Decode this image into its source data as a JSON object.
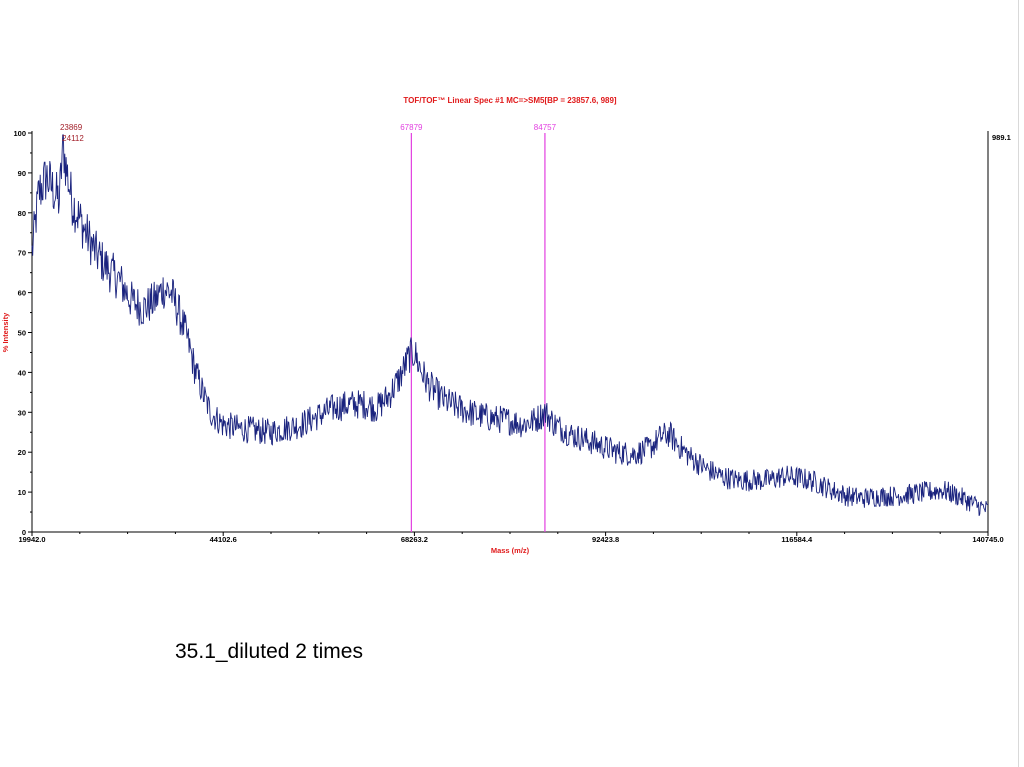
{
  "chart_data": {
    "type": "line",
    "title": "TOF/TOF™ Linear Spec #1 MC=>SM5[BP = 23857.6, 989]",
    "xlabel": "Mass (m/z)",
    "ylabel": "% Intensity",
    "xlim": [
      19942.0,
      140745.0
    ],
    "ylim": [
      0,
      100
    ],
    "x_ticks": [
      19942.0,
      44102.6,
      68263.2,
      92423.8,
      116584.4,
      140745.0
    ],
    "x_tick_labels": [
      "19942.0",
      "44102.6",
      "68263.2",
      "92423.8",
      "116584.4",
      "140745.0"
    ],
    "y_ticks": [
      0,
      10,
      20,
      30,
      40,
      50,
      60,
      70,
      80,
      90,
      100
    ],
    "y_tick_labels": [
      "0",
      "10",
      "20",
      "30",
      "40",
      "50",
      "60",
      "70",
      "80",
      "90",
      "100"
    ],
    "max_intensity_label": "989.1",
    "peak_labels": [
      {
        "mass": 23869,
        "label": "23869",
        "color": "#a3202a"
      },
      {
        "mass": 24112,
        "label": "24112",
        "color": "#a3202a"
      }
    ],
    "markers": [
      {
        "mass": 67879,
        "label": "67879",
        "color": "#e23fe0"
      },
      {
        "mass": 84757,
        "label": "84757",
        "color": "#e23fe0"
      }
    ],
    "series": [
      {
        "color": "#1a237e",
        "points": [
          [
            19942,
            70
          ],
          [
            20800,
            85
          ],
          [
            21800,
            89
          ],
          [
            22800,
            85
          ],
          [
            23400,
            83
          ],
          [
            23869,
            98
          ],
          [
            24112,
            93
          ],
          [
            25000,
            83
          ],
          [
            26500,
            76
          ],
          [
            28000,
            70
          ],
          [
            29500,
            66
          ],
          [
            31000,
            63
          ],
          [
            32500,
            58
          ],
          [
            34000,
            56
          ],
          [
            35500,
            58
          ],
          [
            36500,
            61
          ],
          [
            37500,
            60
          ],
          [
            38500,
            55
          ],
          [
            39500,
            49
          ],
          [
            40500,
            41
          ],
          [
            41500,
            35
          ],
          [
            42500,
            30
          ],
          [
            44000,
            27
          ],
          [
            46000,
            26
          ],
          [
            48000,
            25.5
          ],
          [
            50000,
            25
          ],
          [
            52000,
            26
          ],
          [
            54000,
            27
          ],
          [
            56000,
            29
          ],
          [
            58000,
            31
          ],
          [
            60000,
            32
          ],
          [
            62000,
            32
          ],
          [
            63500,
            31
          ],
          [
            65000,
            34
          ],
          [
            66500,
            39
          ],
          [
            67600,
            44
          ],
          [
            68263,
            45
          ],
          [
            69000,
            41
          ],
          [
            70000,
            37
          ],
          [
            72000,
            33
          ],
          [
            74000,
            31
          ],
          [
            76000,
            29.5
          ],
          [
            78000,
            28.5
          ],
          [
            80000,
            28
          ],
          [
            82000,
            27
          ],
          [
            83500,
            28
          ],
          [
            84757,
            30
          ],
          [
            86000,
            27
          ],
          [
            88000,
            24.5
          ],
          [
            90000,
            23
          ],
          [
            92000,
            21.5
          ],
          [
            94000,
            20
          ],
          [
            96000,
            19.5
          ],
          [
            98000,
            21
          ],
          [
            99500,
            24
          ],
          [
            100500,
            24.5
          ],
          [
            101500,
            22
          ],
          [
            103000,
            19
          ],
          [
            105000,
            16
          ],
          [
            107000,
            14
          ],
          [
            109000,
            13
          ],
          [
            111000,
            13
          ],
          [
            113000,
            13
          ],
          [
            115000,
            14
          ],
          [
            117000,
            13.5
          ],
          [
            119000,
            12.5
          ],
          [
            121000,
            10.5
          ],
          [
            123000,
            9
          ],
          [
            125000,
            8.5
          ],
          [
            127000,
            9
          ],
          [
            129000,
            9
          ],
          [
            131000,
            9.5
          ],
          [
            133000,
            10
          ],
          [
            135000,
            10.5
          ],
          [
            137000,
            9
          ],
          [
            139000,
            7
          ],
          [
            140745,
            5.5
          ]
        ]
      }
    ]
  },
  "caption": "35.1_diluted 2 times"
}
